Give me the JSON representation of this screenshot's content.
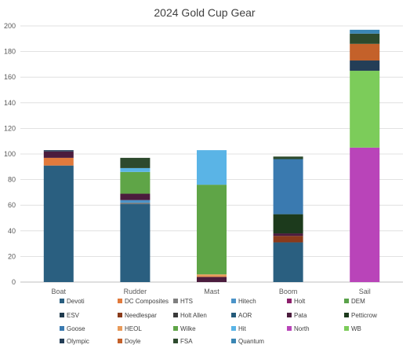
{
  "chart_data": {
    "type": "bar",
    "stacked": true,
    "title": "2024 Gold Cup  Gear",
    "xlabel": "",
    "ylabel": "",
    "ylim": [
      0,
      200
    ],
    "yticks": [
      0,
      20,
      40,
      60,
      80,
      100,
      120,
      140,
      160,
      180,
      200
    ],
    "grid": true,
    "legend_position": "bottom",
    "categories": [
      "Boat",
      "Rudder",
      "Mast",
      "Boom",
      "Sail"
    ],
    "series": [
      {
        "name": "Devoti",
        "color": "#2a5f80",
        "values": [
          91,
          61,
          0,
          31,
          0
        ]
      },
      {
        "name": "DC Composites",
        "color": "#e17a3c",
        "values": [
          6,
          0,
          0,
          0,
          0
        ]
      },
      {
        "name": "HTS",
        "color": "#7f7f7f",
        "values": [
          0,
          1,
          0,
          0,
          0
        ]
      },
      {
        "name": "Hitech",
        "color": "#4b93c8",
        "values": [
          0,
          2,
          0,
          0,
          0
        ]
      },
      {
        "name": "Holt",
        "color": "#8c1f6b",
        "values": [
          0,
          0,
          0,
          0,
          0
        ]
      },
      {
        "name": "DEM",
        "color": "#5aa24a",
        "values": [
          0,
          0,
          0,
          0,
          0
        ]
      },
      {
        "name": "ESV",
        "color": "#1f3a4d",
        "values": [
          0,
          0,
          0,
          0,
          0
        ]
      },
      {
        "name": "Needlespar",
        "color": "#8a3a1a",
        "values": [
          0,
          0,
          0,
          5,
          0
        ]
      },
      {
        "name": "Holt Allen",
        "color": "#3a3a3a",
        "values": [
          0,
          0,
          0,
          0,
          0
        ]
      },
      {
        "name": "AOR",
        "color": "#245a7a",
        "values": [
          0,
          0,
          0,
          0,
          0
        ]
      },
      {
        "name": "Pata",
        "color": "#4b1c3d",
        "values": [
          5,
          5,
          4,
          2,
          0
        ]
      },
      {
        "name": "Petticrow",
        "color": "#1c3a1c",
        "values": [
          0,
          0,
          0,
          15,
          0
        ]
      },
      {
        "name": "Goose",
        "color": "#3a7ab0",
        "values": [
          0,
          0,
          0,
          43,
          0
        ]
      },
      {
        "name": "HEOL",
        "color": "#e89a5a",
        "values": [
          0,
          0,
          2,
          0,
          0
        ]
      },
      {
        "name": "Wilke",
        "color": "#5fa547",
        "values": [
          0,
          17,
          70,
          0,
          0
        ]
      },
      {
        "name": "Hit",
        "color": "#5ab4e6",
        "values": [
          0,
          3,
          27,
          0,
          0
        ]
      },
      {
        "name": "North",
        "color": "#b944b9",
        "values": [
          0,
          0,
          0,
          0,
          105
        ]
      },
      {
        "name": "WB",
        "color": "#7ccc5a",
        "values": [
          0,
          0,
          0,
          0,
          60
        ]
      },
      {
        "name": "Olympic",
        "color": "#243e57",
        "values": [
          1,
          0,
          0,
          0,
          8
        ]
      },
      {
        "name": "Doyle",
        "color": "#c4612a",
        "values": [
          0,
          0,
          0,
          0,
          13
        ]
      },
      {
        "name": "FSA",
        "color": "#2d4a2d",
        "values": [
          0,
          8,
          0,
          2,
          8
        ]
      },
      {
        "name": "Quantum",
        "color": "#3a86b4",
        "values": [
          0,
          0,
          0,
          0,
          3
        ]
      }
    ]
  }
}
